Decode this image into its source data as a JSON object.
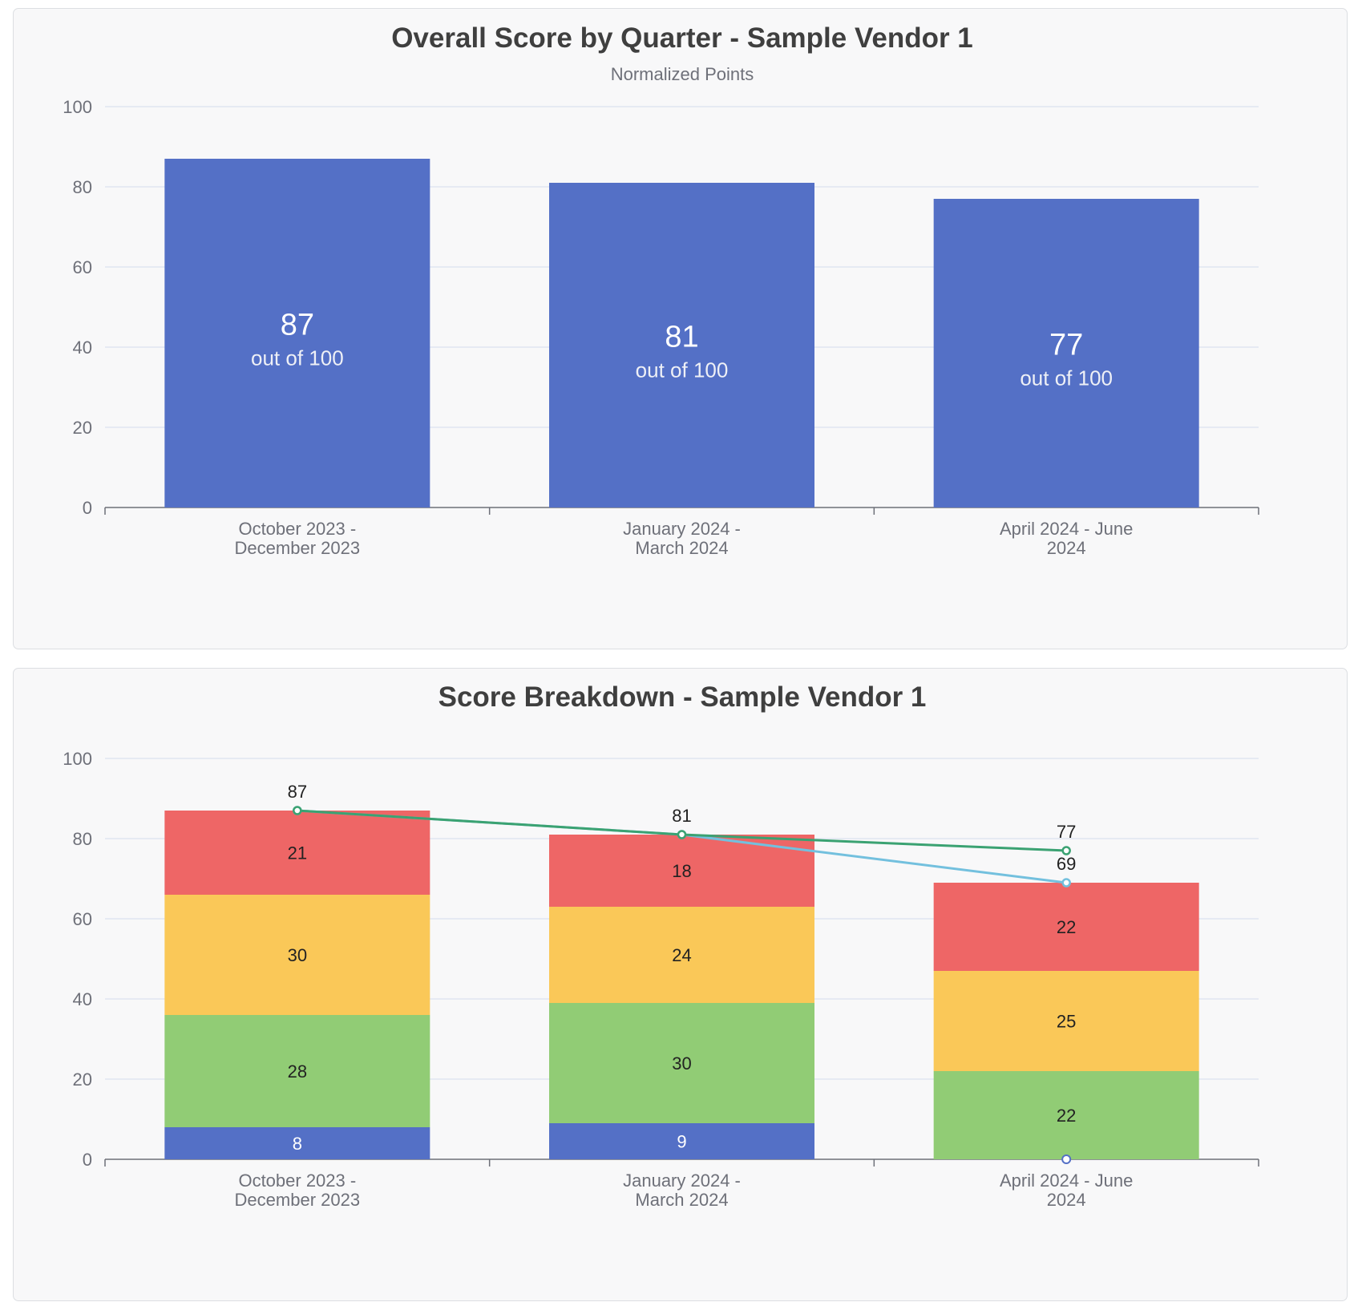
{
  "chart_data": [
    {
      "type": "bar",
      "title": "Overall Score by Quarter - Sample Vendor 1",
      "subtitle": "Normalized Points",
      "categories": [
        [
          "October 2023 -",
          "December 2023"
        ],
        [
          "January 2024 -",
          "March 2024"
        ],
        [
          "April 2024 - June",
          "2024"
        ]
      ],
      "values": [
        87,
        81,
        77
      ],
      "value_suffix": "out of 100",
      "ylim": [
        0,
        100
      ],
      "yticks": [
        0,
        20,
        40,
        60,
        80,
        100
      ],
      "grid": true,
      "colors": {
        "bar": "#5470c6"
      }
    },
    {
      "type": "bar",
      "stacked": true,
      "title": "Score Breakdown - Sample Vendor 1",
      "categories": [
        [
          "October 2023 -",
          "December 2023"
        ],
        [
          "January 2024 -",
          "March 2024"
        ],
        [
          "April 2024 - June",
          "2024"
        ]
      ],
      "series": [
        {
          "values": [
            8,
            9,
            0
          ],
          "color": "#5470c6",
          "label_color": "#ffffff"
        },
        {
          "values": [
            28,
            30,
            22
          ],
          "color": "#91cc75",
          "label_color": "#222222"
        },
        {
          "values": [
            30,
            24,
            25
          ],
          "color": "#fac858",
          "label_color": "#222222"
        },
        {
          "values": [
            21,
            18,
            22
          ],
          "color": "#ee6666",
          "label_color": "#222222"
        }
      ],
      "lines": [
        {
          "values": [
            87,
            81,
            69
          ],
          "color": "#73c0de"
        },
        {
          "values": [
            87,
            81,
            77
          ],
          "color": "#3ba272"
        }
      ],
      "ylim": [
        0,
        100
      ],
      "yticks": [
        0,
        20,
        40,
        60,
        80,
        100
      ],
      "grid": true
    }
  ]
}
